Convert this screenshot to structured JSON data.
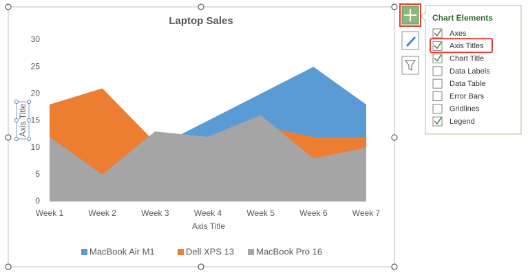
{
  "chart_data": {
    "type": "area",
    "title": "Laptop Sales",
    "categories": [
      "Week 1",
      "Week 2",
      "Week 3",
      "Week 4",
      "Week 5",
      "Week 6",
      "Week 7"
    ],
    "series": [
      {
        "name": "MacBook Air M1",
        "color": "#5b9bd5",
        "values": [
          12,
          8,
          10,
          15,
          20,
          25,
          18
        ]
      },
      {
        "name": "Dell XPS 13",
        "color": "#ed7d31",
        "values": [
          18,
          21,
          11,
          11,
          14,
          12,
          12
        ]
      },
      {
        "name": "MacBook Pro 16",
        "color": "#a5a5a5",
        "values": [
          12,
          5,
          13,
          12,
          16,
          8,
          10
        ]
      }
    ],
    "ylim": [
      0,
      30
    ],
    "yticks": [
      0,
      5,
      10,
      15,
      20,
      25,
      30
    ],
    "x_label": "Axis Title",
    "y_label": "Axis Title",
    "grid": false,
    "legend": "bottom"
  },
  "panel": {
    "title": "Chart Elements",
    "items": [
      {
        "label": "Axes",
        "checked": true
      },
      {
        "label": "Axis Titles",
        "checked": true
      },
      {
        "label": "Chart Title",
        "checked": true
      },
      {
        "label": "Data Labels",
        "checked": false
      },
      {
        "label": "Data Table",
        "checked": false
      },
      {
        "label": "Error Bars",
        "checked": false
      },
      {
        "label": "Gridlines",
        "checked": false
      },
      {
        "label": "Legend",
        "checked": true
      }
    ]
  }
}
